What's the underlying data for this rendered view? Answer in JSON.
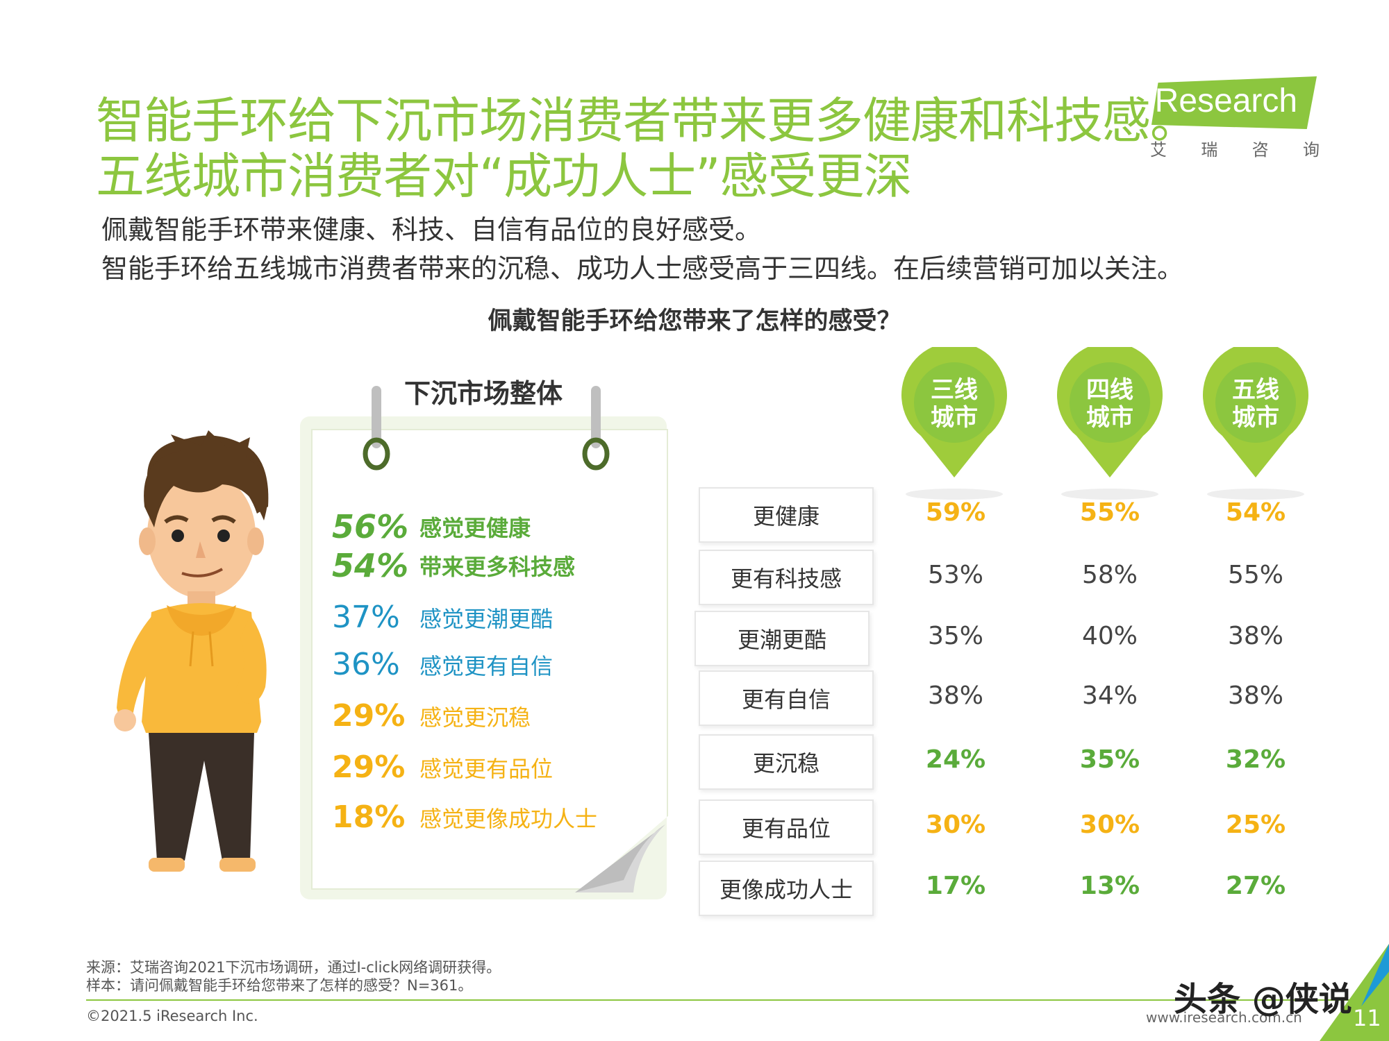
{
  "title": {
    "line1": "智能手环给下沉市场消费者带来更多健康和科技感。",
    "line2": "五线城市消费者对“成功人士”感受更深"
  },
  "subtitle": {
    "line1": "佩戴智能手环带来健康、科技、自信有品位的良好感受。",
    "line2": "智能手环给五线城市消费者带来的沉稳、成功人士感受高于三四线。在后续营销可加以关注。"
  },
  "logo": {
    "text": "iResearch",
    "chars": [
      "艾",
      "瑞",
      "咨",
      "询"
    ]
  },
  "chart_question": "佩戴智能手环给您带来了怎样的感受？",
  "overall": {
    "title": "下沉市场整体",
    "items": [
      {
        "pct": "56%",
        "label": "感觉更健康",
        "color": "green"
      },
      {
        "pct": "54%",
        "label": "带来更多科技感",
        "color": "green"
      },
      {
        "pct": "37%",
        "label": "感觉更潮更酷",
        "color": "blue"
      },
      {
        "pct": "36%",
        "label": "感觉更有自信",
        "color": "blue"
      },
      {
        "pct": "29%",
        "label": "感觉更沉稳",
        "color": "orange"
      },
      {
        "pct": "29%",
        "label": "感觉更有品位",
        "color": "orange"
      },
      {
        "pct": "18%",
        "label": "感觉更像成功人士",
        "color": "orange"
      }
    ]
  },
  "city_tiers": [
    {
      "line1": "三线",
      "line2": "城市"
    },
    {
      "line1": "四线",
      "line2": "城市"
    },
    {
      "line1": "五线",
      "line2": "城市"
    }
  ],
  "table": {
    "rows": [
      {
        "label": "更健康",
        "values": [
          "59%",
          "55%",
          "54%"
        ],
        "style": "bold orange"
      },
      {
        "label": "更有科技感",
        "values": [
          "53%",
          "58%",
          "55%"
        ],
        "style": "normal"
      },
      {
        "label": "更潮更酷",
        "values": [
          "35%",
          "40%",
          "38%"
        ],
        "style": "normal"
      },
      {
        "label": "更有自信",
        "values": [
          "38%",
          "34%",
          "38%"
        ],
        "style": "normal"
      },
      {
        "label": "更沉稳",
        "values": [
          "24%",
          "35%",
          "32%"
        ],
        "style": "bold green"
      },
      {
        "label": "更有品位",
        "values": [
          "30%",
          "30%",
          "25%"
        ],
        "style": "bold orange"
      },
      {
        "label": "更像成功人士",
        "values": [
          "17%",
          "13%",
          "27%"
        ],
        "style": "bold green"
      }
    ]
  },
  "notes": {
    "source": "来源：艾瑞咨询2021下沉市场调研，通过I-click网络调研获得。",
    "sample": "样本：请问佩戴智能手环给您带来了怎样的感受？N=361。"
  },
  "footer": {
    "copyright": "©2021.5 iResearch Inc.",
    "url": "www.iresearch.com.cn",
    "watermark": "头条 @侠说",
    "page": "11"
  },
  "colors": {
    "brand_green": "#8cc63f",
    "green": "#5aab3a",
    "blue": "#1e93c4",
    "orange": "#f5b214"
  }
}
